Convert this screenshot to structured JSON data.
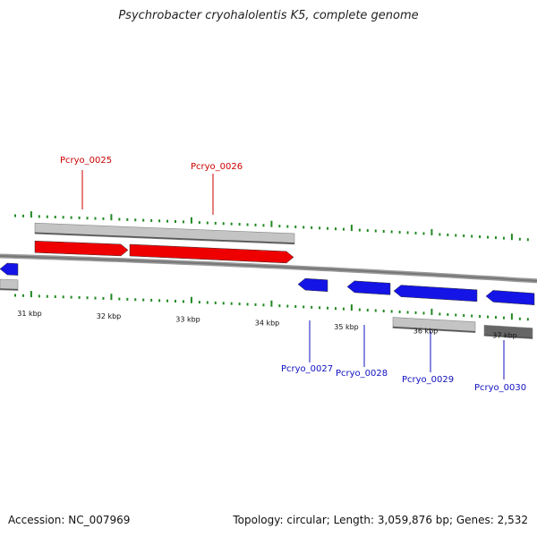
{
  "title": "Psychrobacter cryohalolentis K5, complete genome",
  "footer": {
    "accession": "Accession: NC_007969",
    "summary": "Topology: circular; Length: 3,059,876 bp; Genes: 2,532"
  },
  "colors": {
    "forward_gene": "#ee0000",
    "reverse_gene": "#1414e6",
    "forward_label": "#cc0000",
    "reverse_label": "#1010c0",
    "tick": "#228822",
    "backbone": "#777777",
    "feature_light": "#c4c4c4",
    "feature_dark": "#666666"
  },
  "tick_labels": [
    {
      "text": "31 kbp",
      "kbp": 31
    },
    {
      "text": "32 kbp",
      "kbp": 32
    },
    {
      "text": "33 kbp",
      "kbp": 33
    },
    {
      "text": "34 kbp",
      "kbp": 34
    },
    {
      "text": "35 kbp",
      "kbp": 35
    },
    {
      "text": "36 kbp",
      "kbp": 36
    },
    {
      "text": "37 kbp",
      "kbp": 37
    }
  ],
  "genes": [
    {
      "label": "Pcryo_0025",
      "strand": "forward"
    },
    {
      "label": "Pcryo_0026",
      "strand": "forward"
    },
    {
      "label": "Pcryo_0027",
      "strand": "reverse"
    },
    {
      "label": "Pcryo_0028",
      "strand": "reverse"
    },
    {
      "label": "Pcryo_0029",
      "strand": "reverse"
    },
    {
      "label": "Pcryo_0030",
      "strand": "reverse"
    }
  ]
}
